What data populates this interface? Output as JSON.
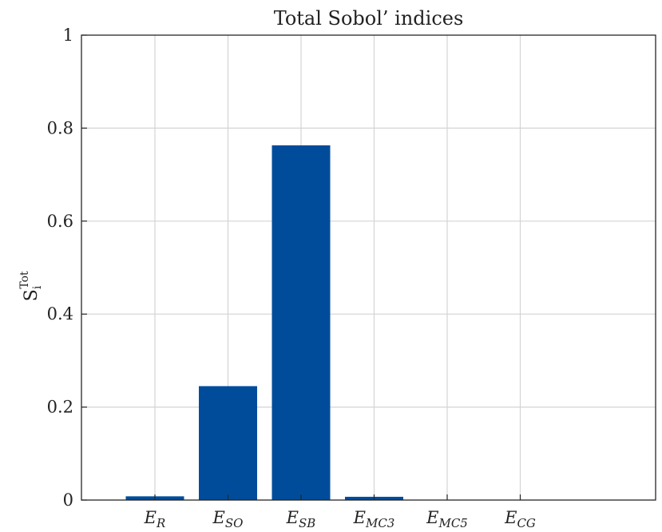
{
  "chart_data": {
    "type": "bar",
    "title": "Total Sobol’ indices",
    "ylabel": {
      "base": "S",
      "subscript": "i",
      "superscript": "Tot"
    },
    "xlabel": "",
    "categories": [
      {
        "main": "E",
        "sub": "R"
      },
      {
        "main": "E",
        "sub": "SO"
      },
      {
        "main": "E",
        "sub": "SB"
      },
      {
        "main": "E",
        "sub": "MC3"
      },
      {
        "main": "E",
        "sub": "MC5"
      },
      {
        "main": "E",
        "sub": "CG"
      }
    ],
    "values": [
      0.008,
      0.245,
      0.763,
      0.007,
      0.0,
      0.0
    ],
    "ylim": [
      0,
      1
    ],
    "yticks": [
      "0",
      "0.2",
      "0.4",
      "0.6",
      "0.8",
      "1"
    ],
    "grid": true,
    "bar_color": "#004c9b"
  }
}
